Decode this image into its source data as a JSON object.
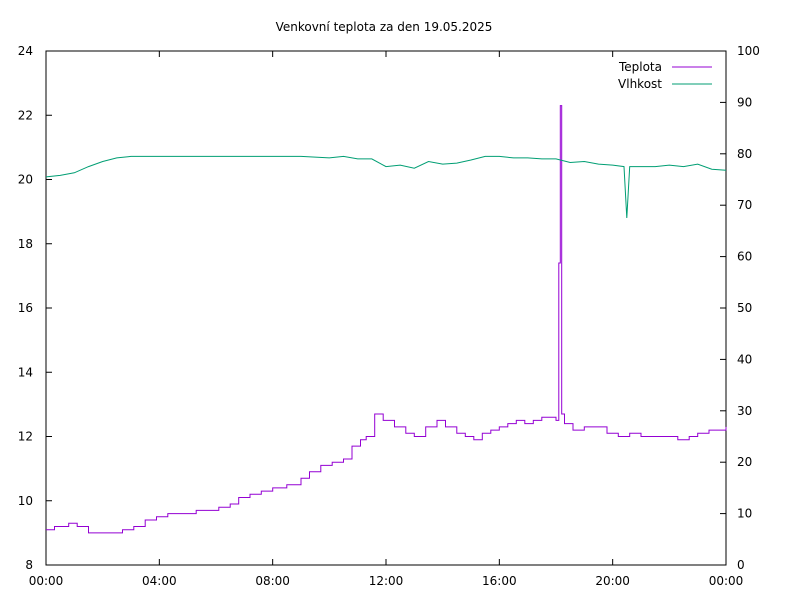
{
  "chart_data": {
    "type": "line",
    "title": "Venkovní teplota za den 19.05.2025",
    "x_ticks": [
      "00:00",
      "04:00",
      "08:00",
      "12:00",
      "16:00",
      "20:00",
      "00:00"
    ],
    "xlim_hours": [
      0,
      24
    ],
    "y_left": {
      "ylim": [
        8,
        24
      ],
      "ticks": [
        "8",
        "10",
        "12",
        "14",
        "16",
        "18",
        "20",
        "22",
        "24"
      ]
    },
    "y_right": {
      "ylim": [
        0,
        100
      ],
      "ticks": [
        "0",
        "10",
        "20",
        "30",
        "40",
        "50",
        "60",
        "70",
        "80",
        "90",
        "100"
      ]
    },
    "legend_position": "top-right",
    "grid": false,
    "series": [
      {
        "name": "Teplota",
        "axis": "left",
        "color": "#9400d3",
        "x": [
          0,
          0.3,
          0.8,
          1.1,
          1.5,
          2.0,
          2.3,
          2.7,
          3.1,
          3.5,
          3.9,
          4.3,
          4.7,
          5.3,
          5.7,
          6.1,
          6.5,
          6.8,
          7.2,
          7.6,
          8.0,
          8.5,
          9.0,
          9.3,
          9.7,
          10.1,
          10.5,
          10.8,
          11.1,
          11.3,
          11.6,
          11.9,
          12.3,
          12.7,
          13.0,
          13.4,
          13.8,
          14.1,
          14.5,
          14.8,
          15.1,
          15.4,
          15.7,
          16.0,
          16.3,
          16.6,
          16.9,
          17.2,
          17.5,
          17.8,
          18.0,
          18.1,
          18.15,
          18.2,
          18.3,
          18.6,
          19.0,
          19.4,
          19.8,
          20.2,
          20.6,
          21.0,
          21.5,
          21.9,
          22.3,
          22.7,
          23.0,
          23.4,
          24.0
        ],
        "y": [
          9.1,
          9.2,
          9.3,
          9.2,
          9.0,
          9.0,
          9.0,
          9.1,
          9.2,
          9.4,
          9.5,
          9.6,
          9.6,
          9.7,
          9.7,
          9.8,
          9.9,
          10.1,
          10.2,
          10.3,
          10.4,
          10.5,
          10.7,
          10.9,
          11.1,
          11.2,
          11.3,
          11.7,
          11.9,
          12.0,
          12.7,
          12.5,
          12.3,
          12.1,
          12.0,
          12.3,
          12.5,
          12.3,
          12.1,
          12.0,
          11.9,
          12.1,
          12.2,
          12.3,
          12.4,
          12.5,
          12.4,
          12.5,
          12.6,
          12.6,
          12.5,
          17.4,
          22.3,
          12.7,
          12.4,
          12.2,
          12.3,
          12.3,
          12.1,
          12.0,
          12.1,
          12.0,
          12.0,
          12.0,
          11.9,
          12.0,
          12.1,
          12.2,
          12.3
        ]
      },
      {
        "name": "Vlhkost",
        "axis": "right",
        "color": "#009e73",
        "x": [
          0,
          0.5,
          1.0,
          1.5,
          2.0,
          2.5,
          3.0,
          4.0,
          5.0,
          6.0,
          7.0,
          8.0,
          9.0,
          10.0,
          10.5,
          11.0,
          11.5,
          12.0,
          12.5,
          13.0,
          13.5,
          14.0,
          14.5,
          15.0,
          15.5,
          16.0,
          16.5,
          17.0,
          17.5,
          18.0,
          18.5,
          19.0,
          19.5,
          20.0,
          20.4,
          20.5,
          20.6,
          21.0,
          21.5,
          22.0,
          22.5,
          23.0,
          23.5,
          24.0
        ],
        "y": [
          75.5,
          75.8,
          76.3,
          77.5,
          78.5,
          79.2,
          79.5,
          79.5,
          79.5,
          79.5,
          79.5,
          79.5,
          79.5,
          79.2,
          79.5,
          79.0,
          79.0,
          77.5,
          77.8,
          77.2,
          78.5,
          78.0,
          78.2,
          78.8,
          79.5,
          79.5,
          79.2,
          79.2,
          79.0,
          79.0,
          78.3,
          78.5,
          78.0,
          77.8,
          77.5,
          67.5,
          77.5,
          77.5,
          77.5,
          77.8,
          77.5,
          78.0,
          77.0,
          76.8
        ]
      }
    ]
  }
}
